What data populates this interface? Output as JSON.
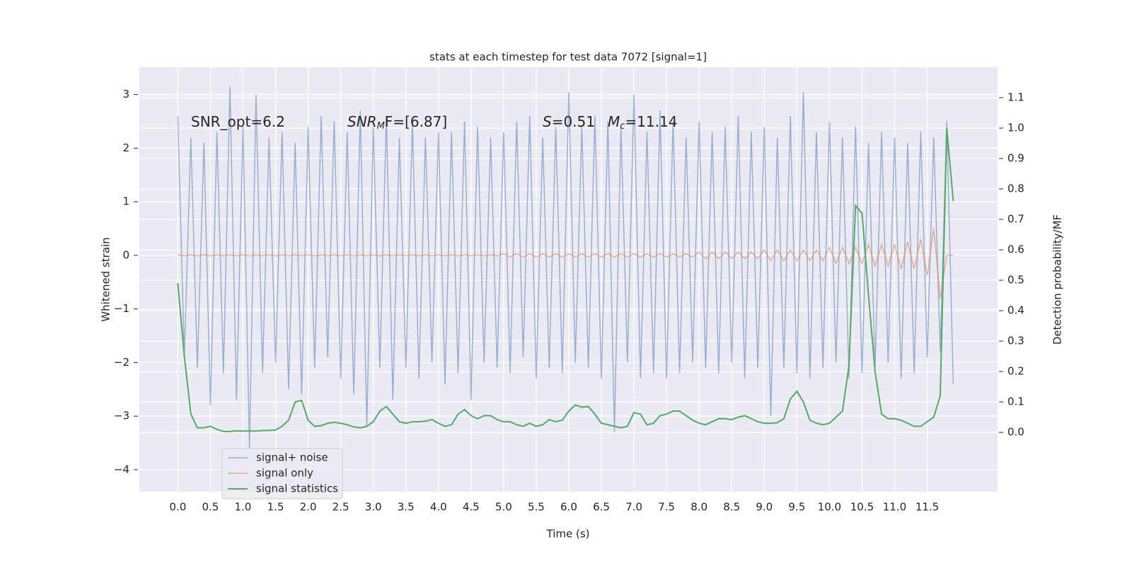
{
  "chart_data": {
    "type": "line",
    "title": "stats at each timestep for test data 7072 [signal=1]",
    "xlabel": "Time (s)",
    "ylabel": "Whitened strain",
    "y2label": "Detection probability/MF",
    "annotations": [
      [
        {
          "text": "SNR_opt=6.2",
          "style": "normal"
        }
      ],
      [
        {
          "text": "SNR",
          "style": "italic"
        },
        {
          "text": "M",
          "style": "sub"
        },
        {
          "text": "F=[6.87]",
          "style": "normal"
        }
      ],
      [
        {
          "text": "S",
          "style": "italic"
        },
        {
          "text": "=0.51",
          "style": "normal"
        }
      ],
      [
        {
          "text": "M",
          "style": "italic"
        },
        {
          "text": "c",
          "style": "sub"
        },
        {
          "text": "=11.14",
          "style": "normal"
        }
      ]
    ],
    "legend_loc": "lower left",
    "grid": true,
    "xlim": [
      -0.59,
      12.58
    ],
    "ylim": [
      -4.41,
      3.51
    ],
    "y2lim": [
      -0.195,
      1.2
    ],
    "xticks": [
      {
        "value": 0,
        "label": "0.0"
      },
      0.5,
      {
        "value": 1,
        "label": "1.0"
      },
      1.5,
      {
        "value": 2,
        "label": "2.0"
      },
      2.5,
      {
        "value": 3,
        "label": "3.0"
      },
      3.5,
      {
        "value": 4,
        "label": "4.0"
      },
      4.5,
      {
        "value": 5,
        "label": "5.0"
      },
      5.5,
      {
        "value": 6,
        "label": "6.0"
      },
      6.5,
      {
        "value": 7,
        "label": "7.0"
      },
      7.5,
      {
        "value": 8,
        "label": "8.0"
      },
      8.5,
      {
        "value": 9,
        "label": "9.0"
      },
      9.5,
      {
        "value": 10,
        "label": "10.0"
      },
      10.5,
      {
        "value": 11,
        "label": "11.0"
      },
      11.5
    ],
    "yticks": [
      {
        "value": -4,
        "label": "−4"
      },
      {
        "value": -3,
        "label": "−3"
      },
      {
        "value": -2,
        "label": "−2"
      },
      {
        "value": -1,
        "label": "−1"
      },
      0,
      1,
      2,
      3
    ],
    "y2ticks": [
      {
        "value": 0,
        "label": "0.0"
      },
      0.1,
      0.2,
      0.3,
      0.4,
      0.5,
      0.6,
      0.7,
      0.8,
      0.9,
      {
        "value": 1,
        "label": "1.0"
      },
      1.1
    ],
    "x": [
      0.0,
      0.1,
      0.2,
      0.3,
      0.4,
      0.5,
      0.6,
      0.7,
      0.8,
      0.9,
      1.0,
      1.1,
      1.2,
      1.3,
      1.4,
      1.5,
      1.6,
      1.7,
      1.8,
      1.9,
      2.0,
      2.1,
      2.2,
      2.3,
      2.4,
      2.5,
      2.6,
      2.7,
      2.8,
      2.9,
      3.0,
      3.1,
      3.2,
      3.3,
      3.4,
      3.5,
      3.6,
      3.7,
      3.8,
      3.9,
      4.0,
      4.1,
      4.2,
      4.3,
      4.4,
      4.5,
      4.6,
      4.7,
      4.8,
      4.9,
      5.0,
      5.1,
      5.2,
      5.3,
      5.4,
      5.5,
      5.6,
      5.7,
      5.8,
      5.9,
      6.0,
      6.1,
      6.2,
      6.3,
      6.4,
      6.5,
      6.6,
      6.7,
      6.8,
      6.9,
      7.0,
      7.1,
      7.2,
      7.3,
      7.4,
      7.5,
      7.6,
      7.7,
      7.8,
      7.9,
      8.0,
      8.1,
      8.2,
      8.3,
      8.4,
      8.5,
      8.6,
      8.7,
      8.8,
      8.9,
      9.0,
      9.1,
      9.2,
      9.3,
      9.4,
      9.5,
      9.6,
      9.7,
      9.8,
      9.9,
      10.0,
      10.1,
      10.2,
      10.3,
      10.4,
      10.5,
      10.6,
      10.7,
      10.8,
      10.9,
      11.0,
      11.1,
      11.2,
      11.3,
      11.4,
      11.5,
      11.6,
      11.7,
      11.8,
      11.9
    ],
    "series": [
      {
        "name": "signal+ noise",
        "color": "#4c72b0",
        "axis": "y",
        "values": [
          2.6,
          -1.9,
          2.2,
          -2.1,
          2.1,
          -2.8,
          2.3,
          -2.2,
          3.15,
          -2.7,
          2.4,
          -3.6,
          3.0,
          -2.2,
          2.2,
          -2.0,
          2.3,
          -2.5,
          2.1,
          -2.6,
          2.4,
          -2.1,
          2.6,
          -1.9,
          2.5,
          -2.3,
          2.3,
          -2.6,
          2.7,
          -3.2,
          2.4,
          -2.1,
          2.6,
          -2.7,
          2.2,
          -2.1,
          2.5,
          -2.3,
          2.2,
          -2.0,
          2.3,
          -2.4,
          2.3,
          -2.2,
          2.5,
          -2.7,
          2.4,
          -2.0,
          2.2,
          -2.1,
          2.3,
          -2.2,
          2.5,
          -1.9,
          2.6,
          -2.3,
          2.2,
          -2.1,
          2.4,
          -2.2,
          3.05,
          -2.0,
          2.4,
          -2.1,
          2.6,
          -2.3,
          2.5,
          -3.3,
          2.4,
          -2.0,
          3.0,
          -2.3,
          2.3,
          -2.2,
          2.7,
          -2.3,
          2.5,
          -2.2,
          2.2,
          -2.0,
          2.5,
          -2.1,
          2.3,
          -2.2,
          2.4,
          -2.0,
          2.6,
          -2.3,
          2.3,
          -2.1,
          2.4,
          -3.0,
          2.2,
          -2.1,
          2.6,
          -2.2,
          3.05,
          -2.3,
          2.3,
          -2.1,
          2.5,
          -2.0,
          2.2,
          -2.3,
          2.4,
          -2.2,
          2.1,
          -2.1,
          2.3,
          -2.0,
          2.2,
          -2.3,
          2.1,
          -2.2,
          2.3,
          -1.9,
          2.2,
          -1.8,
          2.5,
          -2.4
        ]
      },
      {
        "name": "signal only",
        "color": "#dd8452",
        "axis": "y",
        "values": [
          0.01,
          -0.01,
          0.01,
          -0.01,
          0.01,
          -0.01,
          0.01,
          -0.01,
          0.01,
          -0.01,
          0.01,
          -0.01,
          0.01,
          -0.01,
          0.01,
          -0.01,
          0.01,
          -0.01,
          0.01,
          -0.01,
          0.01,
          -0.01,
          0.01,
          -0.01,
          0.01,
          -0.01,
          0.01,
          -0.01,
          0.01,
          -0.01,
          0.01,
          -0.01,
          0.01,
          -0.01,
          0.01,
          -0.01,
          0.01,
          -0.01,
          0.01,
          -0.01,
          0.01,
          -0.01,
          0.01,
          -0.01,
          0.01,
          -0.01,
          0.01,
          -0.01,
          0.01,
          -0.01,
          0.03,
          -0.03,
          0.03,
          -0.03,
          0.03,
          -0.03,
          0.03,
          -0.03,
          0.03,
          -0.03,
          0.03,
          -0.03,
          0.03,
          -0.03,
          0.03,
          -0.03,
          0.03,
          -0.03,
          0.03,
          -0.03,
          0.03,
          -0.03,
          0.03,
          -0.03,
          0.03,
          -0.03,
          0.03,
          -0.03,
          0.03,
          -0.03,
          0.06,
          -0.06,
          0.06,
          -0.06,
          0.06,
          -0.06,
          0.06,
          -0.06,
          0.06,
          -0.06,
          0.1,
          -0.1,
          0.1,
          -0.1,
          0.1,
          -0.1,
          0.1,
          -0.1,
          0.1,
          -0.1,
          0.15,
          -0.15,
          0.15,
          -0.15,
          0.15,
          -0.15,
          0.2,
          -0.2,
          0.2,
          -0.2,
          0.2,
          -0.25,
          0.25,
          -0.25,
          0.3,
          -0.38,
          0.5,
          -0.8,
          0,
          0
        ]
      },
      {
        "name": "signal statistics",
        "color": "#55a868",
        "axis": "y2",
        "values": [
          0.49,
          0.25,
          0.06,
          0.015,
          0.015,
          0.02,
          0.01,
          0.003,
          0.003,
          0.005,
          0.004,
          0.005,
          0.004,
          0.006,
          0.006,
          0.008,
          0.02,
          0.04,
          0.1,
          0.105,
          0.04,
          0.02,
          0.022,
          0.03,
          0.033,
          0.03,
          0.025,
          0.018,
          0.015,
          0.02,
          0.035,
          0.07,
          0.085,
          0.06,
          0.035,
          0.03,
          0.035,
          0.035,
          0.037,
          0.042,
          0.03,
          0.02,
          0.025,
          0.06,
          0.075,
          0.055,
          0.045,
          0.055,
          0.055,
          0.042,
          0.035,
          0.035,
          0.025,
          0.02,
          0.03,
          0.02,
          0.025,
          0.042,
          0.035,
          0.04,
          0.07,
          0.09,
          0.083,
          0.085,
          0.06,
          0.03,
          0.025,
          0.02,
          0.015,
          0.02,
          0.065,
          0.06,
          0.025,
          0.03,
          0.055,
          0.06,
          0.07,
          0.07,
          0.055,
          0.04,
          0.03,
          0.025,
          0.035,
          0.045,
          0.045,
          0.042,
          0.05,
          0.055,
          0.045,
          0.035,
          0.03,
          0.03,
          0.032,
          0.045,
          0.11,
          0.135,
          0.1,
          0.04,
          0.03,
          0.025,
          0.03,
          0.05,
          0.07,
          0.22,
          0.745,
          0.72,
          0.45,
          0.2,
          0.06,
          0.045,
          0.045,
          0.04,
          0.03,
          0.02,
          0.02,
          0.035,
          0.05,
          0.12,
          1.0,
          0.76
        ]
      }
    ]
  }
}
